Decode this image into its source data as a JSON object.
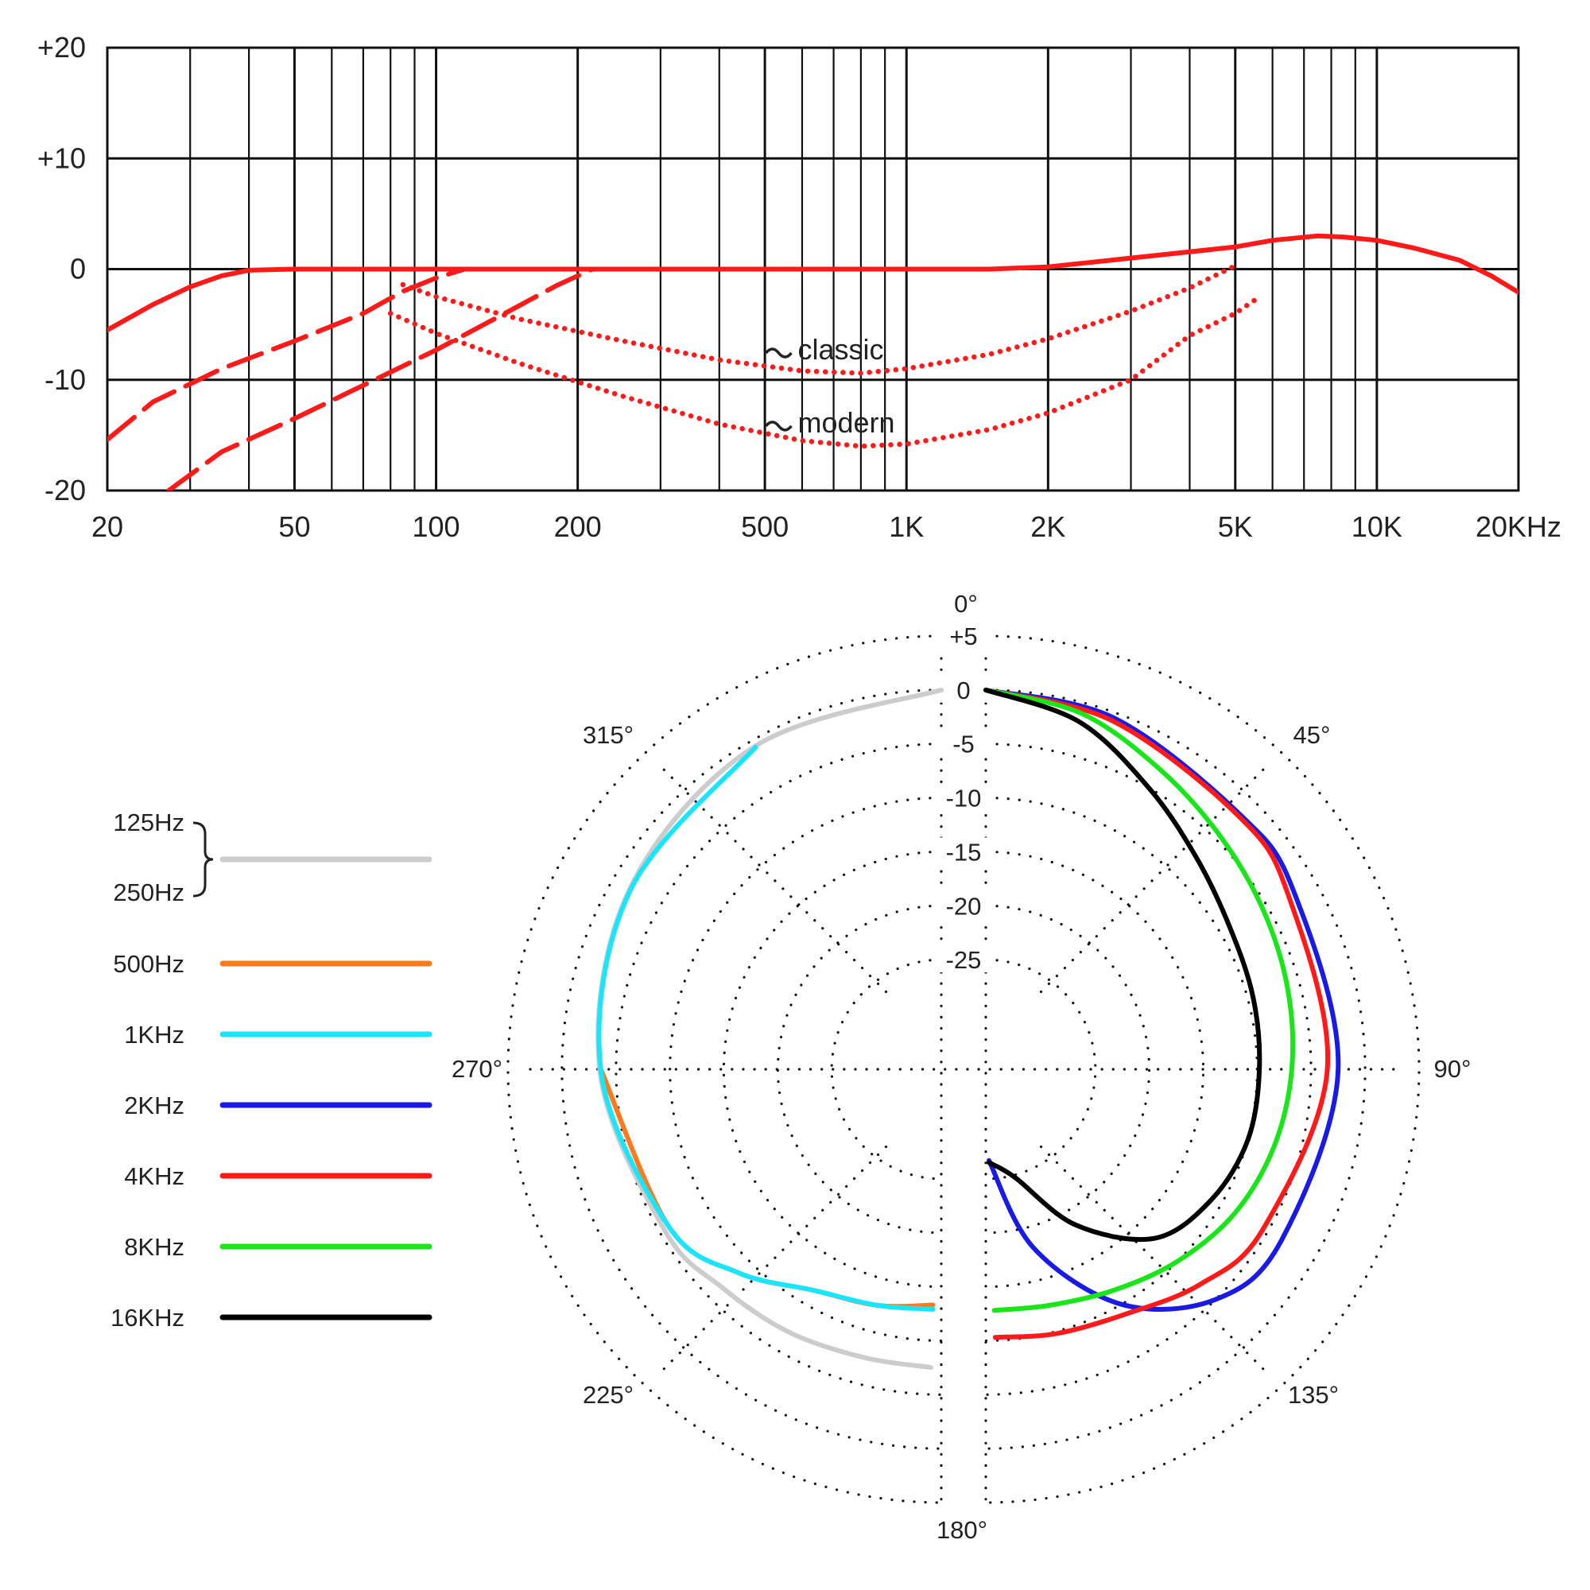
{
  "chart_data": [
    {
      "type": "line",
      "xscale": "log",
      "xlim": [
        20,
        20000
      ],
      "ylim": [
        -20,
        20
      ],
      "grid": true,
      "x_ticks": [
        {
          "v": 20,
          "label": "20"
        },
        {
          "v": 50,
          "label": "50"
        },
        {
          "v": 100,
          "label": "100"
        },
        {
          "v": 200,
          "label": "200"
        },
        {
          "v": 500,
          "label": "500"
        },
        {
          "v": 1000,
          "label": "1K"
        },
        {
          "v": 2000,
          "label": "2K"
        },
        {
          "v": 5000,
          "label": "5K"
        },
        {
          "v": 10000,
          "label": "10K"
        },
        {
          "v": 20000,
          "label": "20KHz"
        }
      ],
      "y_ticks": [
        {
          "v": 20,
          "label": "+20"
        },
        {
          "v": 10,
          "label": "+10"
        },
        {
          "v": 0,
          "label": "0"
        },
        {
          "v": -10,
          "label": "-10"
        },
        {
          "v": -20,
          "label": "-20"
        }
      ],
      "annotations": [
        {
          "text": "classic",
          "x": 850,
          "y": -7
        },
        {
          "text": "modern",
          "x": 850,
          "y": -13.6
        }
      ],
      "series": [
        {
          "style": "solid",
          "color": "#ff1a1a",
          "points": [
            [
              20,
              -5.5
            ],
            [
              25,
              -3.2
            ],
            [
              30,
              -1.6
            ],
            [
              35,
              -0.6
            ],
            [
              40,
              -0.1
            ],
            [
              50,
              0
            ],
            [
              100,
              0
            ],
            [
              200,
              0
            ],
            [
              500,
              0
            ],
            [
              1000,
              0
            ],
            [
              1500,
              0
            ],
            [
              2000,
              0.2
            ],
            [
              3000,
              1
            ],
            [
              5000,
              2
            ],
            [
              6000,
              2.6
            ],
            [
              7500,
              3
            ],
            [
              8500,
              2.9
            ],
            [
              10000,
              2.6
            ],
            [
              12000,
              1.9
            ],
            [
              15000,
              0.8
            ],
            [
              17500,
              -0.6
            ],
            [
              20000,
              -2.1
            ]
          ]
        },
        {
          "style": "dashed",
          "color": "#ff1a1a",
          "points": [
            [
              20,
              -15.4
            ],
            [
              25,
              -12
            ],
            [
              35,
              -9
            ],
            [
              50,
              -6.5
            ],
            [
              70,
              -4
            ],
            [
              85,
              -2
            ],
            [
              100,
              -0.8
            ],
            [
              115,
              0
            ],
            [
              1000,
              0
            ]
          ]
        },
        {
          "style": "dashed",
          "color": "#ff1a1a",
          "points": [
            [
              27,
              -20
            ],
            [
              35,
              -16.5
            ],
            [
              50,
              -13.5
            ],
            [
              70,
              -10.5
            ],
            [
              100,
              -7.3
            ],
            [
              140,
              -4
            ],
            [
              180,
              -1.5
            ],
            [
              215,
              0
            ],
            [
              1000,
              0
            ]
          ]
        },
        {
          "style": "dotted",
          "color": "#ff1a1a",
          "points": [
            [
              85,
              -1.4
            ],
            [
              100,
              -2.5
            ],
            [
              150,
              -4.5
            ],
            [
              250,
              -6.5
            ],
            [
              400,
              -8.2
            ],
            [
              600,
              -9.2
            ],
            [
              800,
              -9.4
            ],
            [
              1000,
              -9
            ],
            [
              1500,
              -7.7
            ],
            [
              2000,
              -6.3
            ],
            [
              3000,
              -3.8
            ],
            [
              4000,
              -1.7
            ],
            [
              5000,
              0.3
            ]
          ]
        },
        {
          "style": "dotted",
          "color": "#ff1a1a",
          "points": [
            [
              80,
              -4
            ],
            [
              100,
              -5.8
            ],
            [
              150,
              -8.5
            ],
            [
              250,
              -11.5
            ],
            [
              400,
              -14
            ],
            [
              600,
              -15.5
            ],
            [
              800,
              -16
            ],
            [
              1000,
              -15.8
            ],
            [
              1500,
              -14.5
            ],
            [
              2000,
              -13
            ],
            [
              3000,
              -10
            ],
            [
              4000,
              -6
            ],
            [
              5000,
              -4
            ],
            [
              5500,
              -2.8
            ]
          ]
        }
      ]
    },
    {
      "type": "polar",
      "r_ticks": [
        {
          "v": 5,
          "label": "+5"
        },
        {
          "v": 0,
          "label": "0"
        },
        {
          "v": -5,
          "label": "-5"
        },
        {
          "v": -10,
          "label": "-10"
        },
        {
          "v": -15,
          "label": "-15"
        },
        {
          "v": -20,
          "label": "-20"
        },
        {
          "v": -25,
          "label": "-25"
        }
      ],
      "rlim": [
        -30,
        5
      ],
      "angle_labels": [
        {
          "deg": 0,
          "label": "0°"
        },
        {
          "deg": 45,
          "label": "45°"
        },
        {
          "deg": 90,
          "label": "90°"
        },
        {
          "deg": 135,
          "label": "135°"
        },
        {
          "deg": 180,
          "label": "180°"
        },
        {
          "deg": 225,
          "label": "225°"
        },
        {
          "deg": 270,
          "label": "270°"
        },
        {
          "deg": 315,
          "label": "315°"
        }
      ],
      "legend": {
        "placement": "left",
        "brace_labels": [
          "125Hz",
          "250Hz"
        ],
        "entries": [
          {
            "label": "500Hz",
            "color": "#ff7a1a"
          },
          {
            "label": "1KHz",
            "color": "#1ae5ff"
          },
          {
            "label": "2KHz",
            "color": "#1a1ae5"
          },
          {
            "label": "4KHz",
            "color": "#ff1a1a"
          },
          {
            "label": "8KHz",
            "color": "#1ae51a"
          },
          {
            "label": "16KHz",
            "color": "#000000"
          }
        ]
      },
      "series": [
        {
          "name": "125Hz / 250Hz",
          "color": "#cccccc",
          "side": "left",
          "points": [
            [
              0,
              0
            ],
            [
              30,
              -0.6
            ],
            [
              60,
              -1.8
            ],
            [
              90,
              -3.5
            ],
            [
              120,
              -5.5
            ],
            [
              135,
              -6.5
            ],
            [
              150,
              -7
            ],
            [
              165,
              -7.5
            ],
            [
              178,
              -7.5
            ]
          ]
        },
        {
          "name": "500Hz",
          "color": "#ff7a1a",
          "side": "left",
          "points": [
            [
              90,
              -3.6
            ],
            [
              120,
              -6
            ],
            [
              135,
              -8.5
            ],
            [
              150,
              -11.5
            ],
            [
              165,
              -12.5
            ],
            [
              178,
              -13.3
            ]
          ]
        },
        {
          "name": "1KHz",
          "color": "#1ae5ff",
          "side": "left",
          "points": [
            [
              30,
              -0.7
            ],
            [
              60,
              -1.9
            ],
            [
              90,
              -3.6
            ],
            [
              120,
              -6
            ],
            [
              135,
              -8.5
            ],
            [
              150,
              -11.5
            ],
            [
              165,
              -12.5
            ],
            [
              178,
              -12.9
            ]
          ]
        },
        {
          "name": "2KHz",
          "color": "#1a1ae5",
          "side": "right",
          "points": [
            [
              0,
              0
            ],
            [
              20,
              -0.5
            ],
            [
              45,
              -1.8
            ],
            [
              60,
              -2.2
            ],
            [
              90,
              -2.5
            ],
            [
              120,
              -3.5
            ],
            [
              135,
              -5
            ],
            [
              150,
              -10
            ],
            [
              165,
              -18
            ],
            [
              178,
              -26.7
            ]
          ]
        },
        {
          "name": "4KHz",
          "color": "#ff1a1a",
          "side": "right",
          "points": [
            [
              0,
              0
            ],
            [
              20,
              -0.8
            ],
            [
              45,
              -2
            ],
            [
              60,
              -2.8
            ],
            [
              90,
              -3.5
            ],
            [
              120,
              -5.5
            ],
            [
              135,
              -7
            ],
            [
              150,
              -9
            ],
            [
              165,
              -9.8
            ],
            [
              178,
              -10.3
            ]
          ]
        },
        {
          "name": "8KHz",
          "color": "#1ae51a",
          "side": "right",
          "points": [
            [
              0,
              0
            ],
            [
              15,
              -1
            ],
            [
              30,
              -3
            ],
            [
              45,
              -4.5
            ],
            [
              60,
              -5.5
            ],
            [
              75,
              -6.2
            ],
            [
              90,
              -6.8
            ],
            [
              105,
              -7.5
            ],
            [
              120,
              -8.5
            ],
            [
              135,
              -10
            ],
            [
              150,
              -11.5
            ],
            [
              165,
              -12.5
            ],
            [
              178,
              -12.8
            ]
          ]
        },
        {
          "name": "16KHz",
          "color": "#000000",
          "side": "right",
          "points": [
            [
              0,
              0
            ],
            [
              15,
              -1.8
            ],
            [
              30,
              -5
            ],
            [
              45,
              -7.5
            ],
            [
              60,
              -9
            ],
            [
              75,
              -9.5
            ],
            [
              90,
              -9.8
            ],
            [
              105,
              -10
            ],
            [
              120,
              -11
            ],
            [
              135,
              -13
            ],
            [
              150,
              -18.5
            ],
            [
              165,
              -24.8
            ],
            [
              178,
              -26.5
            ]
          ]
        }
      ]
    }
  ]
}
